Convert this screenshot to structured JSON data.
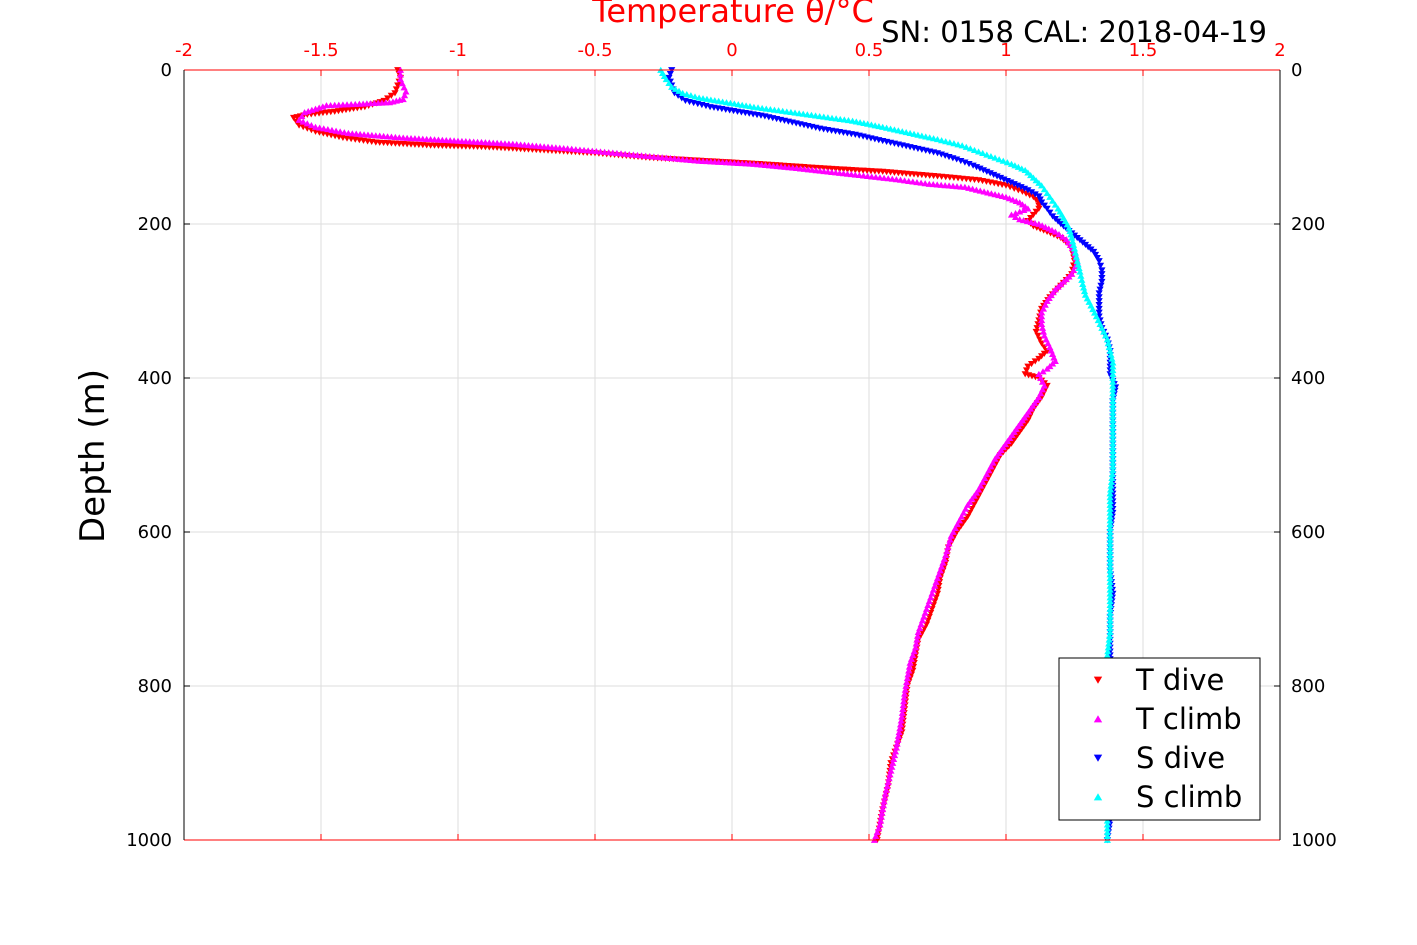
{
  "chart_data": {
    "type": "scatter",
    "title": "",
    "subtitle": "SN: 0158  CAL: 2018-04-19",
    "xlabel": "Temperature θ/°C",
    "ylabel": "Depth (m)",
    "xlim": [
      -2,
      2
    ],
    "ylim": [
      0,
      1000
    ],
    "y_reversed": true,
    "x_axis_position": "top",
    "x_ticks": [
      "-2",
      "-1.5",
      "-1",
      "-0.5",
      "0",
      "0.5",
      "1",
      "1.5",
      "2"
    ],
    "y_ticks": [
      "0",
      "200",
      "400",
      "600",
      "800",
      "1000"
    ],
    "y_ticks_right": [
      "0",
      "200",
      "400",
      "600",
      "800",
      "1000"
    ],
    "grid": true,
    "legend_position": "bottom-right",
    "colors": {
      "axis_accent": "#ff0000",
      "t_dive": "#ff0000",
      "t_climb": "#ff00ff",
      "s_dive": "#0000ff",
      "s_climb": "#00ffff",
      "grid": "#dddddd"
    },
    "series": [
      {
        "name": "T dive",
        "marker": "triangle-down",
        "points": [
          [
            -1.22,
            0
          ],
          [
            -1.21,
            10
          ],
          [
            -1.22,
            20
          ],
          [
            -1.23,
            30
          ],
          [
            -1.27,
            40
          ],
          [
            -1.34,
            48
          ],
          [
            -1.45,
            54
          ],
          [
            -1.55,
            58
          ],
          [
            -1.6,
            62
          ],
          [
            -1.58,
            72
          ],
          [
            -1.52,
            80
          ],
          [
            -1.42,
            88
          ],
          [
            -1.3,
            94
          ],
          [
            -1.1,
            98
          ],
          [
            -0.9,
            100
          ],
          [
            -0.7,
            104
          ],
          [
            -0.5,
            108
          ],
          [
            -0.3,
            114
          ],
          [
            -0.1,
            118
          ],
          [
            0.1,
            122
          ],
          [
            0.35,
            128
          ],
          [
            0.55,
            132
          ],
          [
            0.75,
            138
          ],
          [
            0.9,
            143
          ],
          [
            1.0,
            150
          ],
          [
            1.06,
            158
          ],
          [
            1.1,
            165
          ],
          [
            1.12,
            172
          ],
          [
            1.12,
            180
          ],
          [
            1.1,
            188
          ],
          [
            1.08,
            196
          ],
          [
            1.1,
            203
          ],
          [
            1.15,
            210
          ],
          [
            1.2,
            218
          ],
          [
            1.24,
            230
          ],
          [
            1.25,
            248
          ],
          [
            1.24,
            265
          ],
          [
            1.2,
            280
          ],
          [
            1.16,
            295
          ],
          [
            1.13,
            310
          ],
          [
            1.12,
            325
          ],
          [
            1.11,
            340
          ],
          [
            1.13,
            355
          ],
          [
            1.15,
            365
          ],
          [
            1.12,
            375
          ],
          [
            1.08,
            385
          ],
          [
            1.07,
            395
          ],
          [
            1.12,
            400
          ],
          [
            1.15,
            410
          ],
          [
            1.13,
            425
          ],
          [
            1.1,
            440
          ],
          [
            1.08,
            455
          ],
          [
            1.05,
            470
          ],
          [
            1.02,
            485
          ],
          [
            0.98,
            500
          ],
          [
            0.95,
            520
          ],
          [
            0.92,
            540
          ],
          [
            0.89,
            560
          ],
          [
            0.86,
            580
          ],
          [
            0.82,
            600
          ],
          [
            0.79,
            620
          ],
          [
            0.78,
            640
          ],
          [
            0.76,
            660
          ],
          [
            0.75,
            680
          ],
          [
            0.73,
            700
          ],
          [
            0.71,
            720
          ],
          [
            0.68,
            740
          ],
          [
            0.67,
            760
          ],
          [
            0.66,
            780
          ],
          [
            0.64,
            800
          ],
          [
            0.63,
            830
          ],
          [
            0.62,
            860
          ],
          [
            0.6,
            880
          ],
          [
            0.58,
            900
          ],
          [
            0.57,
            930
          ],
          [
            0.55,
            960
          ],
          [
            0.54,
            980
          ],
          [
            0.53,
            1000
          ]
        ]
      },
      {
        "name": "T climb",
        "marker": "triangle-up",
        "points": [
          [
            -1.21,
            0
          ],
          [
            -1.21,
            12
          ],
          [
            -1.19,
            28
          ],
          [
            -1.2,
            38
          ],
          [
            -1.25,
            42
          ],
          [
            -1.36,
            44
          ],
          [
            -1.48,
            46
          ],
          [
            -1.56,
            55
          ],
          [
            -1.58,
            65
          ],
          [
            -1.52,
            74
          ],
          [
            -1.4,
            82
          ],
          [
            -1.2,
            88
          ],
          [
            -1.0,
            92
          ],
          [
            -0.8,
            96
          ],
          [
            -0.6,
            102
          ],
          [
            -0.42,
            108
          ],
          [
            -0.3,
            112
          ],
          [
            -0.12,
            118
          ],
          [
            0.08,
            122
          ],
          [
            0.25,
            128
          ],
          [
            0.45,
            136
          ],
          [
            0.6,
            142
          ],
          [
            0.72,
            148
          ],
          [
            0.85,
            152
          ],
          [
            0.92,
            158
          ],
          [
            1.0,
            165
          ],
          [
            1.05,
            172
          ],
          [
            1.08,
            180
          ],
          [
            1.02,
            188
          ],
          [
            1.05,
            194
          ],
          [
            1.12,
            200
          ],
          [
            1.18,
            210
          ],
          [
            1.22,
            220
          ],
          [
            1.25,
            235
          ],
          [
            1.26,
            250
          ],
          [
            1.24,
            265
          ],
          [
            1.21,
            275
          ],
          [
            1.18,
            285
          ],
          [
            1.15,
            300
          ],
          [
            1.13,
            315
          ],
          [
            1.13,
            330
          ],
          [
            1.14,
            345
          ],
          [
            1.16,
            360
          ],
          [
            1.18,
            378
          ],
          [
            1.15,
            388
          ],
          [
            1.12,
            395
          ],
          [
            1.14,
            410
          ],
          [
            1.12,
            425
          ],
          [
            1.09,
            440
          ],
          [
            1.06,
            455
          ],
          [
            1.03,
            470
          ],
          [
            0.99,
            490
          ],
          [
            0.96,
            505
          ],
          [
            0.93,
            525
          ],
          [
            0.9,
            545
          ],
          [
            0.86,
            565
          ],
          [
            0.83,
            585
          ],
          [
            0.8,
            605
          ],
          [
            0.78,
            630
          ],
          [
            0.76,
            650
          ],
          [
            0.74,
            670
          ],
          [
            0.72,
            690
          ],
          [
            0.7,
            710
          ],
          [
            0.68,
            730
          ],
          [
            0.67,
            750
          ],
          [
            0.65,
            770
          ],
          [
            0.64,
            790
          ],
          [
            0.63,
            810
          ],
          [
            0.62,
            840
          ],
          [
            0.61,
            860
          ],
          [
            0.6,
            880
          ],
          [
            0.58,
            910
          ],
          [
            0.56,
            940
          ],
          [
            0.55,
            960
          ],
          [
            0.54,
            980
          ],
          [
            0.52,
            1000
          ]
        ]
      },
      {
        "name": "S dive",
        "marker": "triangle-down",
        "points": [
          [
            -0.22,
            0
          ],
          [
            -0.23,
            10
          ],
          [
            -0.22,
            20
          ],
          [
            -0.21,
            30
          ],
          [
            -0.17,
            40
          ],
          [
            -0.08,
            48
          ],
          [
            0.02,
            54
          ],
          [
            0.12,
            60
          ],
          [
            0.22,
            68
          ],
          [
            0.32,
            76
          ],
          [
            0.45,
            84
          ],
          [
            0.55,
            92
          ],
          [
            0.65,
            100
          ],
          [
            0.75,
            108
          ],
          [
            0.82,
            116
          ],
          [
            0.88,
            124
          ],
          [
            0.93,
            132
          ],
          [
            0.98,
            140
          ],
          [
            1.03,
            148
          ],
          [
            1.08,
            156
          ],
          [
            1.12,
            164
          ],
          [
            1.13,
            172
          ],
          [
            1.15,
            180
          ],
          [
            1.17,
            190
          ],
          [
            1.2,
            200
          ],
          [
            1.24,
            212
          ],
          [
            1.28,
            224
          ],
          [
            1.32,
            236
          ],
          [
            1.34,
            248
          ],
          [
            1.35,
            260
          ],
          [
            1.35,
            275
          ],
          [
            1.34,
            290
          ],
          [
            1.34,
            305
          ],
          [
            1.34,
            320
          ],
          [
            1.35,
            335
          ],
          [
            1.37,
            350
          ],
          [
            1.38,
            365
          ],
          [
            1.38,
            380
          ],
          [
            1.38,
            395
          ],
          [
            1.4,
            412
          ],
          [
            1.39,
            430
          ],
          [
            1.39,
            450
          ],
          [
            1.39,
            470
          ],
          [
            1.39,
            490
          ],
          [
            1.39,
            510
          ],
          [
            1.39,
            530
          ],
          [
            1.39,
            550
          ],
          [
            1.39,
            575
          ],
          [
            1.38,
            600
          ],
          [
            1.38,
            625
          ],
          [
            1.38,
            650
          ],
          [
            1.39,
            680
          ],
          [
            1.38,
            710
          ],
          [
            1.38,
            740
          ],
          [
            1.38,
            770
          ],
          [
            1.38,
            800
          ],
          [
            1.38,
            830
          ],
          [
            1.38,
            860
          ],
          [
            1.38,
            890
          ],
          [
            1.38,
            920
          ],
          [
            1.38,
            950
          ],
          [
            1.38,
            975
          ],
          [
            1.37,
            1000
          ]
        ]
      },
      {
        "name": "S climb",
        "marker": "triangle-up",
        "points": [
          [
            -0.26,
            0
          ],
          [
            -0.24,
            12
          ],
          [
            -0.22,
            22
          ],
          [
            -0.18,
            30
          ],
          [
            -0.12,
            36
          ],
          [
            -0.02,
            42
          ],
          [
            0.08,
            48
          ],
          [
            0.2,
            54
          ],
          [
            0.32,
            60
          ],
          [
            0.44,
            66
          ],
          [
            0.55,
            74
          ],
          [
            0.65,
            82
          ],
          [
            0.75,
            90
          ],
          [
            0.84,
            98
          ],
          [
            0.9,
            106
          ],
          [
            0.96,
            114
          ],
          [
            1.02,
            122
          ],
          [
            1.07,
            130
          ],
          [
            1.1,
            140
          ],
          [
            1.13,
            150
          ],
          [
            1.15,
            160
          ],
          [
            1.17,
            170
          ],
          [
            1.19,
            180
          ],
          [
            1.21,
            192
          ],
          [
            1.23,
            205
          ],
          [
            1.24,
            218
          ],
          [
            1.25,
            232
          ],
          [
            1.26,
            248
          ],
          [
            1.27,
            262
          ],
          [
            1.28,
            278
          ],
          [
            1.29,
            292
          ],
          [
            1.31,
            306
          ],
          [
            1.33,
            320
          ],
          [
            1.35,
            335
          ],
          [
            1.37,
            350
          ],
          [
            1.38,
            365
          ],
          [
            1.39,
            380
          ],
          [
            1.39,
            400
          ],
          [
            1.39,
            420
          ],
          [
            1.39,
            445
          ],
          [
            1.39,
            470
          ],
          [
            1.39,
            495
          ],
          [
            1.39,
            520
          ],
          [
            1.38,
            550
          ],
          [
            1.38,
            580
          ],
          [
            1.38,
            610
          ],
          [
            1.38,
            640
          ],
          [
            1.38,
            670
          ],
          [
            1.38,
            700
          ],
          [
            1.38,
            730
          ],
          [
            1.37,
            760
          ],
          [
            1.37,
            790
          ],
          [
            1.37,
            820
          ],
          [
            1.37,
            850
          ],
          [
            1.37,
            880
          ],
          [
            1.37,
            910
          ],
          [
            1.37,
            940
          ],
          [
            1.37,
            970
          ],
          [
            1.37,
            990
          ],
          [
            1.37,
            1000
          ]
        ]
      }
    ]
  }
}
